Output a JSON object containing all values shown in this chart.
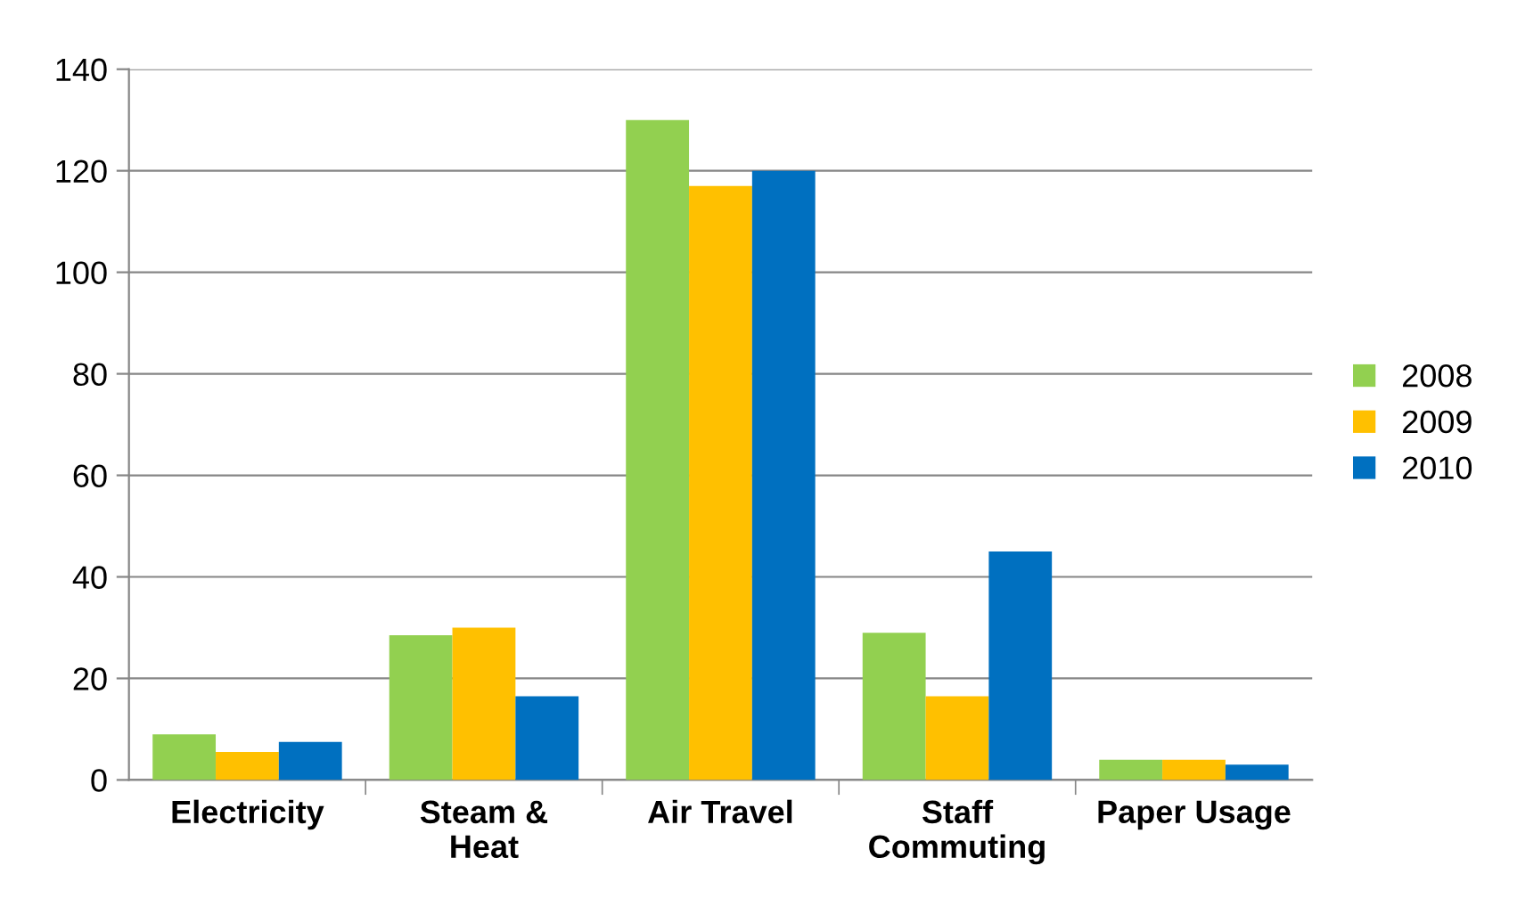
{
  "chart_data": {
    "type": "bar",
    "categories": [
      "Electricity",
      "Steam &\nHeat",
      "Air Travel",
      "Staff\nCommuting",
      "Paper Usage"
    ],
    "series": [
      {
        "name": "2008",
        "color": "#92d050",
        "values": [
          9,
          28.5,
          130,
          29,
          4
        ]
      },
      {
        "name": "2009",
        "color": "#ffc000",
        "values": [
          5.5,
          30,
          117,
          16.5,
          4
        ]
      },
      {
        "name": "2010",
        "color": "#0070c0",
        "values": [
          7.5,
          16.5,
          120,
          45,
          3
        ]
      }
    ],
    "ylim": [
      0,
      140
    ],
    "yticks": [
      0,
      20,
      40,
      60,
      80,
      100,
      120,
      140
    ],
    "grid": "y",
    "legend": "right"
  }
}
